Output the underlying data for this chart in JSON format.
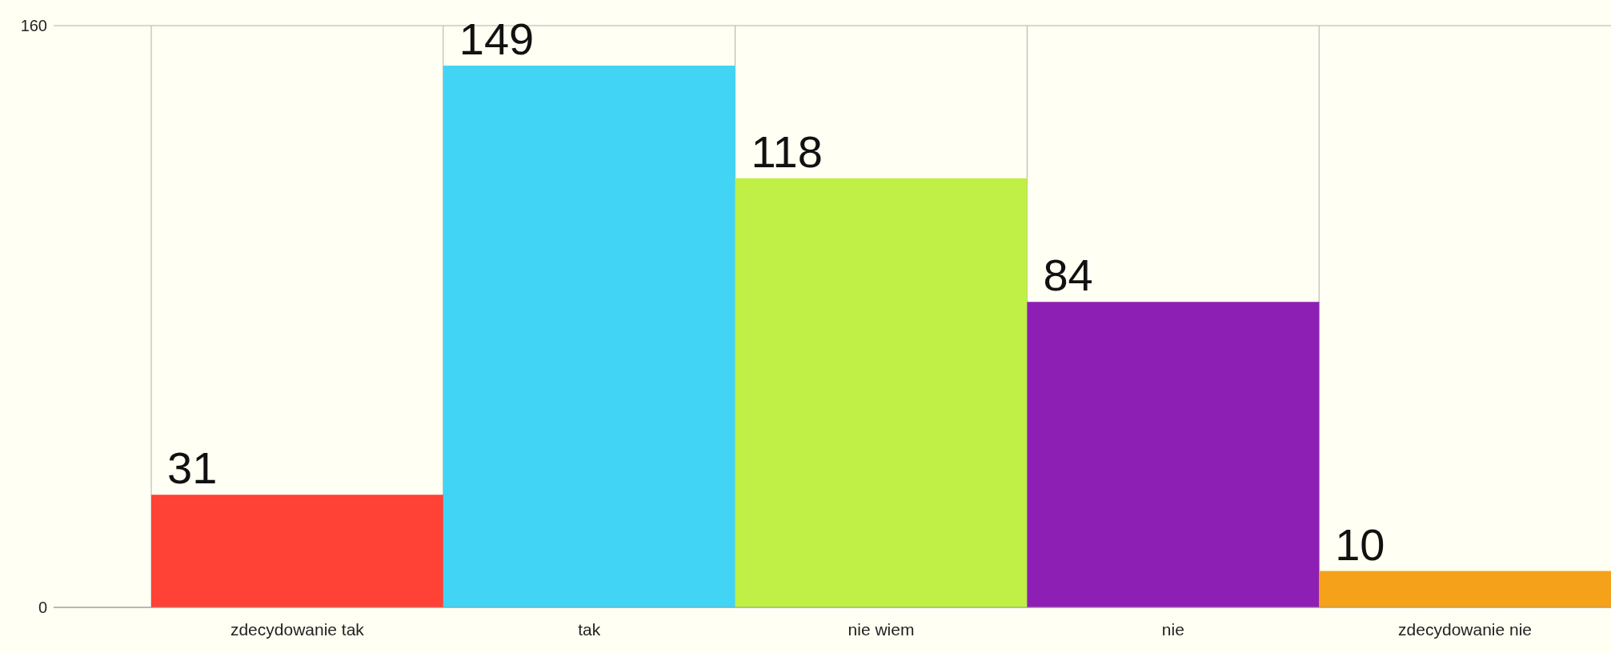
{
  "chart_data": {
    "type": "bar",
    "categories": [
      "zdecydowanie tak",
      "tak",
      "nie wiem",
      "nie",
      "zdecydowanie nie"
    ],
    "values": [
      31,
      149,
      118,
      84,
      10
    ],
    "colors": [
      "#ff4136",
      "#42d4f4",
      "#c0ef45",
      "#8e1fb4",
      "#f5a11a"
    ],
    "ylim": [
      0,
      160
    ],
    "yticks": [
      0,
      160
    ],
    "grid": true,
    "data_labels": true
  }
}
